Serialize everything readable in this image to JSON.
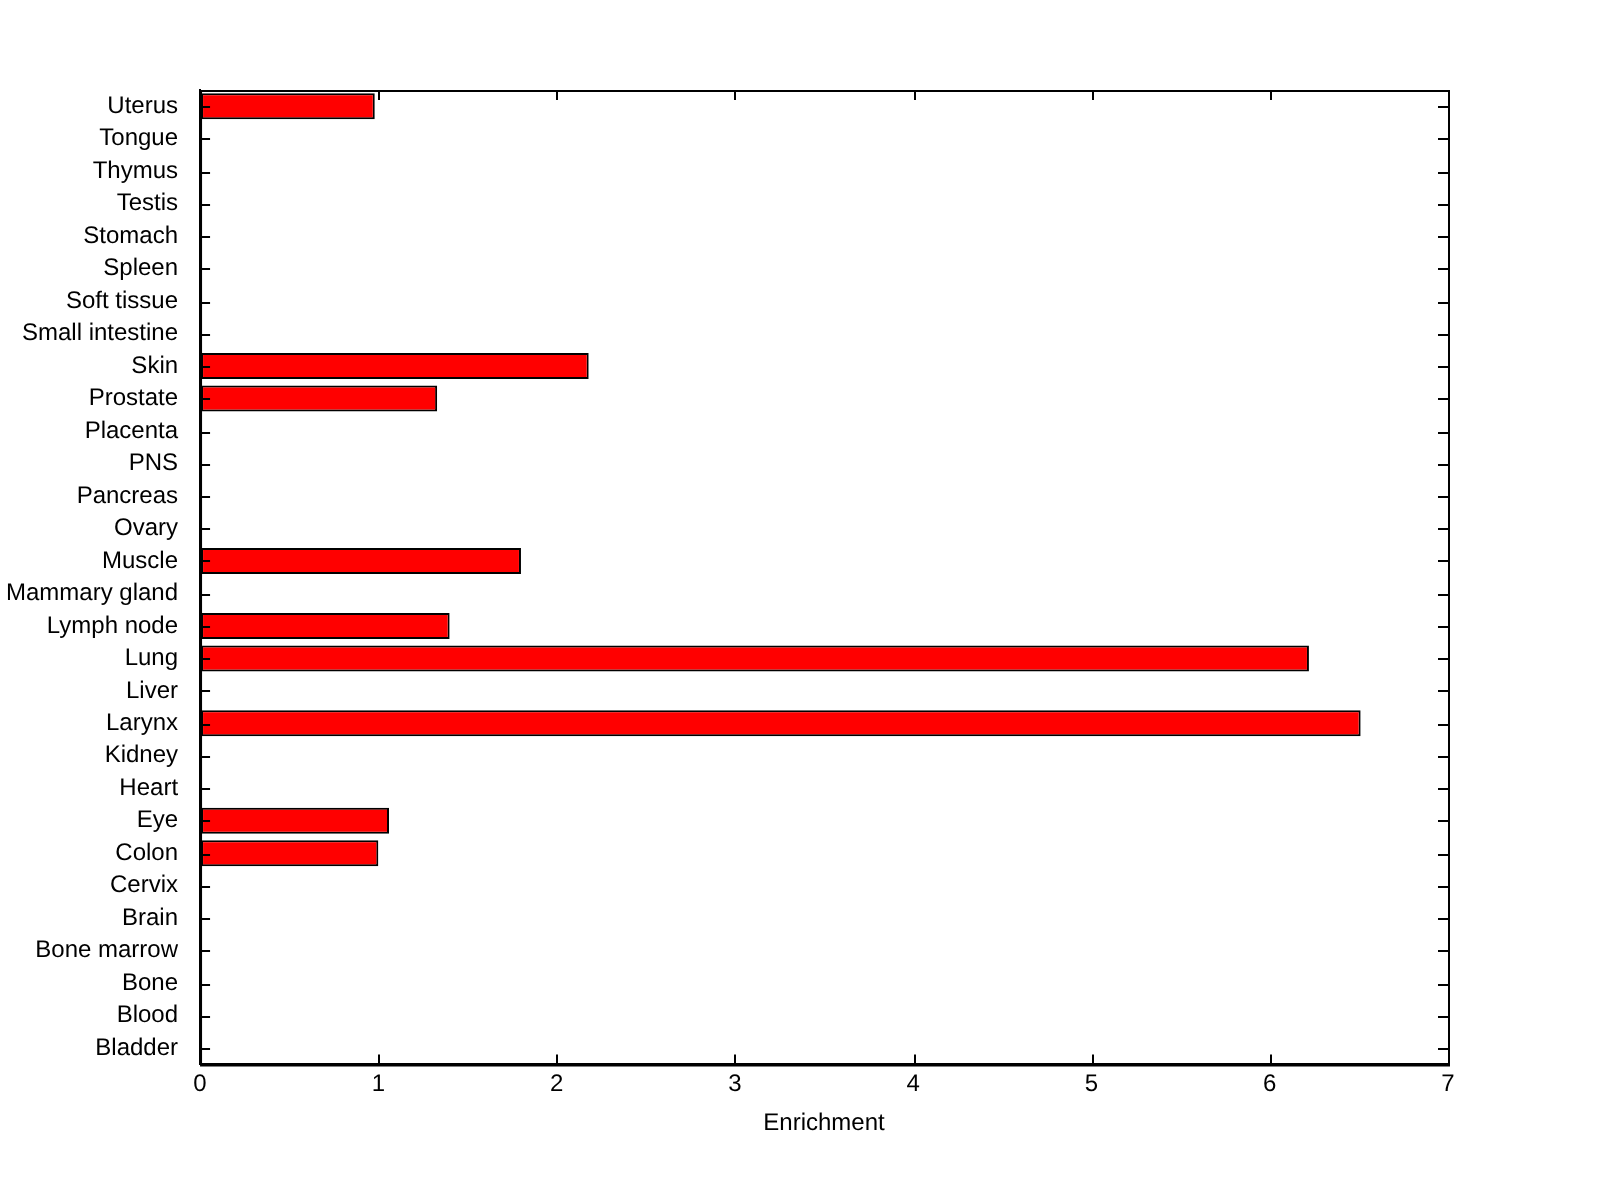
{
  "chart_data": {
    "type": "bar",
    "orientation": "horizontal",
    "xlabel": "Enrichment",
    "categories": [
      "Uterus",
      "Tongue",
      "Thymus",
      "Testis",
      "Stomach",
      "Spleen",
      "Soft tissue",
      "Small intestine",
      "Skin",
      "Prostate",
      "Placenta",
      "PNS",
      "Pancreas",
      "Ovary",
      "Muscle",
      "Mammary gland",
      "Lymph node",
      "Lung",
      "Liver",
      "Larynx",
      "Kidney",
      "Heart",
      "Eye",
      "Colon",
      "Cervix",
      "Brain",
      "Bone marrow",
      "Bone",
      "Blood",
      "Bladder"
    ],
    "values": [
      0.98,
      0,
      0,
      0,
      0,
      0,
      0,
      0,
      2.18,
      1.33,
      0,
      0,
      0,
      0,
      1.8,
      0,
      1.4,
      6.22,
      0,
      6.51,
      0,
      0,
      1.06,
      1.0,
      0,
      0,
      0,
      0,
      0,
      0
    ],
    "color": "#ff0000",
    "xlim": [
      0,
      7
    ],
    "xticks": [
      0,
      1,
      2,
      3,
      4,
      5,
      6,
      7
    ],
    "grid": false,
    "legend": false
  }
}
